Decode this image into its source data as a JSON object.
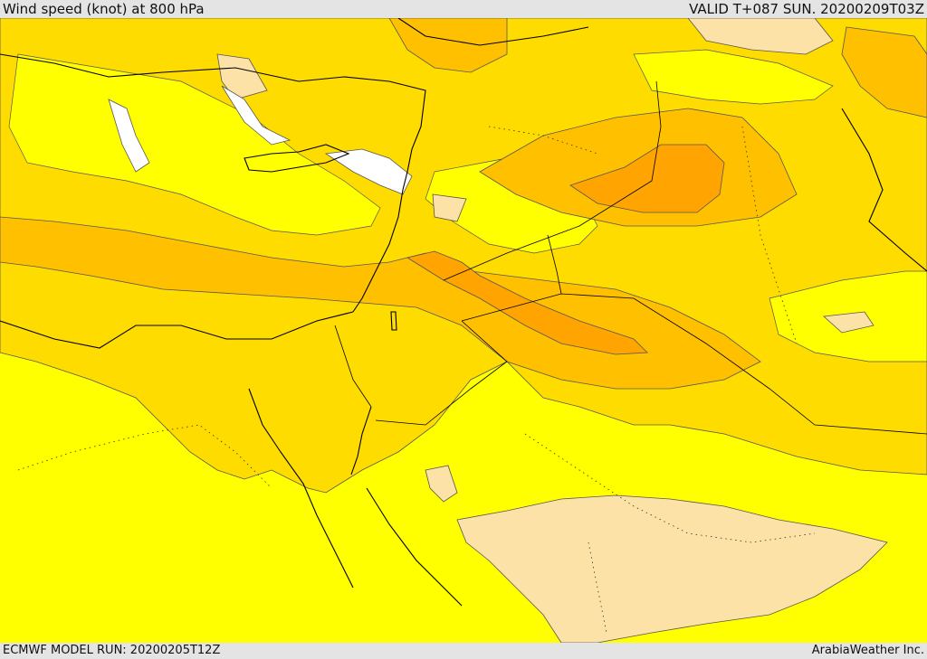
{
  "header": {
    "title": "Wind speed (knot) at 800 hPa",
    "valid_time": "VALID T+087 SUN. 20200209T03Z"
  },
  "footer": {
    "model_run": "ECMWF MODEL RUN: 20200205T12Z",
    "credit": "ArabiaWeather Inc."
  },
  "map": {
    "variable": "wind speed",
    "units": "knot",
    "level_hpa": 800,
    "colors": {
      "calm_white": "#ffffff",
      "light_peach": "#fde2a8",
      "yellow": "#ffff00",
      "gold": "#ffdc00",
      "light_orange": "#ffc000",
      "orange": "#ffb000",
      "dark_orange": "#ff9e00"
    }
  }
}
